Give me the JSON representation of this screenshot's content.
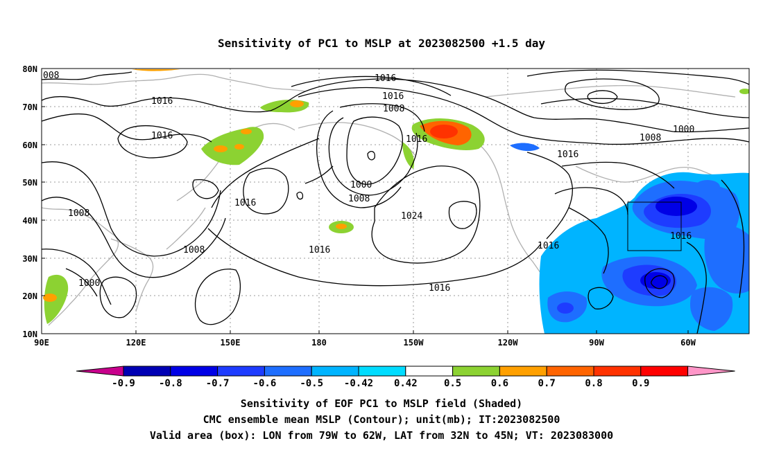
{
  "title": "Sensitivity of PC1 to MSLP at 2023082500 +1.5 day",
  "map": {
    "lat_labels": [
      "80N",
      "70N",
      "60N",
      "50N",
      "40N",
      "30N",
      "20N",
      "10N"
    ],
    "lon_labels": [
      "90E",
      "120E",
      "150E",
      "180",
      "150W",
      "120W",
      "90W",
      "60W"
    ],
    "domain": {
      "lon_min": 90,
      "lon_max": 315,
      "lat_min": 10,
      "lat_max": 80
    },
    "valid_box": {
      "lon": [
        79,
        62
      ],
      "lat": [
        32,
        45
      ],
      "units_lon": "W",
      "units_lat": "N"
    },
    "contour_labels": [
      "008",
      "1016",
      "1016",
      "1008",
      "1016",
      "1016",
      "1008",
      "1016",
      "1000",
      "1008",
      "1016",
      "1008",
      "1024",
      "1016",
      "1016",
      "1016",
      "1008",
      "1000",
      "1000",
      "1016",
      "1008"
    ]
  },
  "colorbar": {
    "labels": [
      "-0.9",
      "-0.8",
      "-0.7",
      "-0.6",
      "-0.5",
      "-0.42",
      "0.42",
      "0.5",
      "0.6",
      "0.7",
      "0.8",
      "0.9"
    ],
    "colors": [
      "#c8008c",
      "#0000b4",
      "#0000e6",
      "#1e3cff",
      "#1e6eff",
      "#00b4ff",
      "#00dcff",
      "#ffffff",
      "#8cd232",
      "#ffa000",
      "#ff6400",
      "#ff3200",
      "#ff0000",
      "#ff96c8"
    ]
  },
  "captions": {
    "line1": "Sensitivity of EOF PC1 to MSLP field (Shaded)",
    "line2": "CMC ensemble mean MSLP (Contour); unit(mb); IT:2023082500",
    "line3": "Valid area (box): LON from 79W to 62W, LAT from 32N to 45N; VT: 2023083000"
  }
}
